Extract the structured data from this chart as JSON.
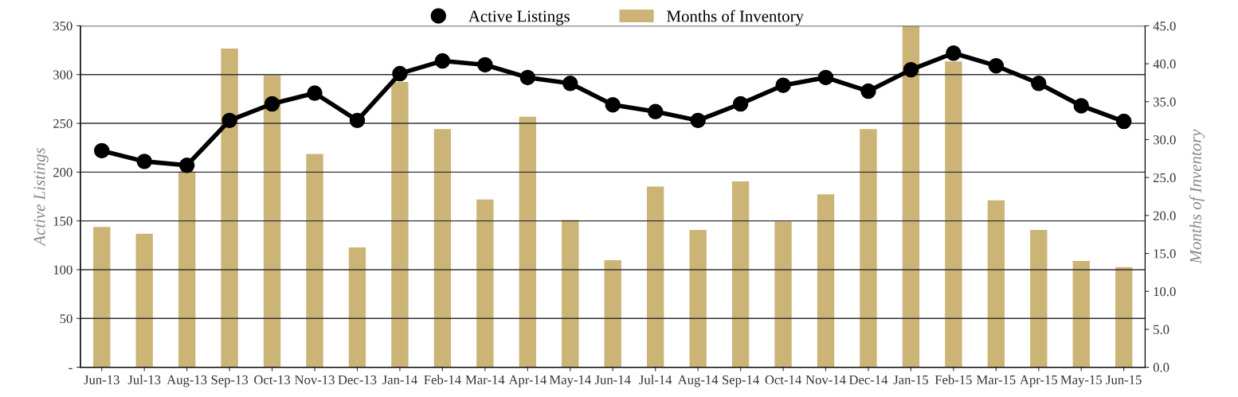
{
  "chart_data": {
    "type": "bar",
    "categories": [
      "Jun-13",
      "Jul-13",
      "Aug-13",
      "Sep-13",
      "Oct-13",
      "Nov-13",
      "Dec-13",
      "Jan-14",
      "Feb-14",
      "Mar-14",
      "Apr-14",
      "May-14",
      "Jun-14",
      "Jul-14",
      "Aug-14",
      "Sep-14",
      "Oct-14",
      "Nov-14",
      "Dec-14",
      "Jan-15",
      "Feb-15",
      "Mar-15",
      "Apr-15",
      "May-15",
      "Jun-15"
    ],
    "series": [
      {
        "name": "Active Listings",
        "type": "line",
        "color": "#000000",
        "marker": "circle",
        "values": [
          222,
          211,
          207,
          253,
          270,
          281,
          253,
          301,
          314,
          310,
          297,
          291,
          269,
          262,
          253,
          270,
          289,
          297,
          283,
          305,
          322,
          309,
          291,
          268,
          252
        ]
      },
      {
        "name": "Months of Inventory",
        "axis": "y2",
        "color": "#cbb476",
        "values": [
          18.5,
          17.6,
          25.8,
          42.0,
          38.5,
          28.1,
          15.8,
          37.6,
          31.4,
          22.1,
          33.0,
          19.4,
          14.1,
          23.8,
          18.1,
          24.5,
          19.2,
          22.8,
          31.4,
          45.0,
          40.3,
          22.0,
          18.1,
          14.0,
          13.2
        ]
      }
    ],
    "ylabel": "Active Listings",
    "y2label": "Months of Inventory",
    "ylim": [
      0,
      350
    ],
    "yticks": [
      {
        "value": 0,
        "label": "-"
      },
      50,
      100,
      150,
      200,
      250,
      300,
      350
    ],
    "y2lim": [
      0,
      45
    ],
    "y2ticks": [
      {
        "value": 0,
        "label": "0.0"
      },
      {
        "value": 5,
        "label": "5.0"
      },
      {
        "value": 10,
        "label": "10.0"
      },
      {
        "value": 15,
        "label": "15.0"
      },
      {
        "value": 20,
        "label": "20.0"
      },
      {
        "value": 25,
        "label": "25.0"
      },
      {
        "value": 30,
        "label": "30.0"
      },
      {
        "value": 35,
        "label": "35.0"
      },
      {
        "value": 40,
        "label": "40.0"
      },
      {
        "value": 45,
        "label": "45.0"
      }
    ],
    "grid": "y",
    "legend": "top"
  }
}
